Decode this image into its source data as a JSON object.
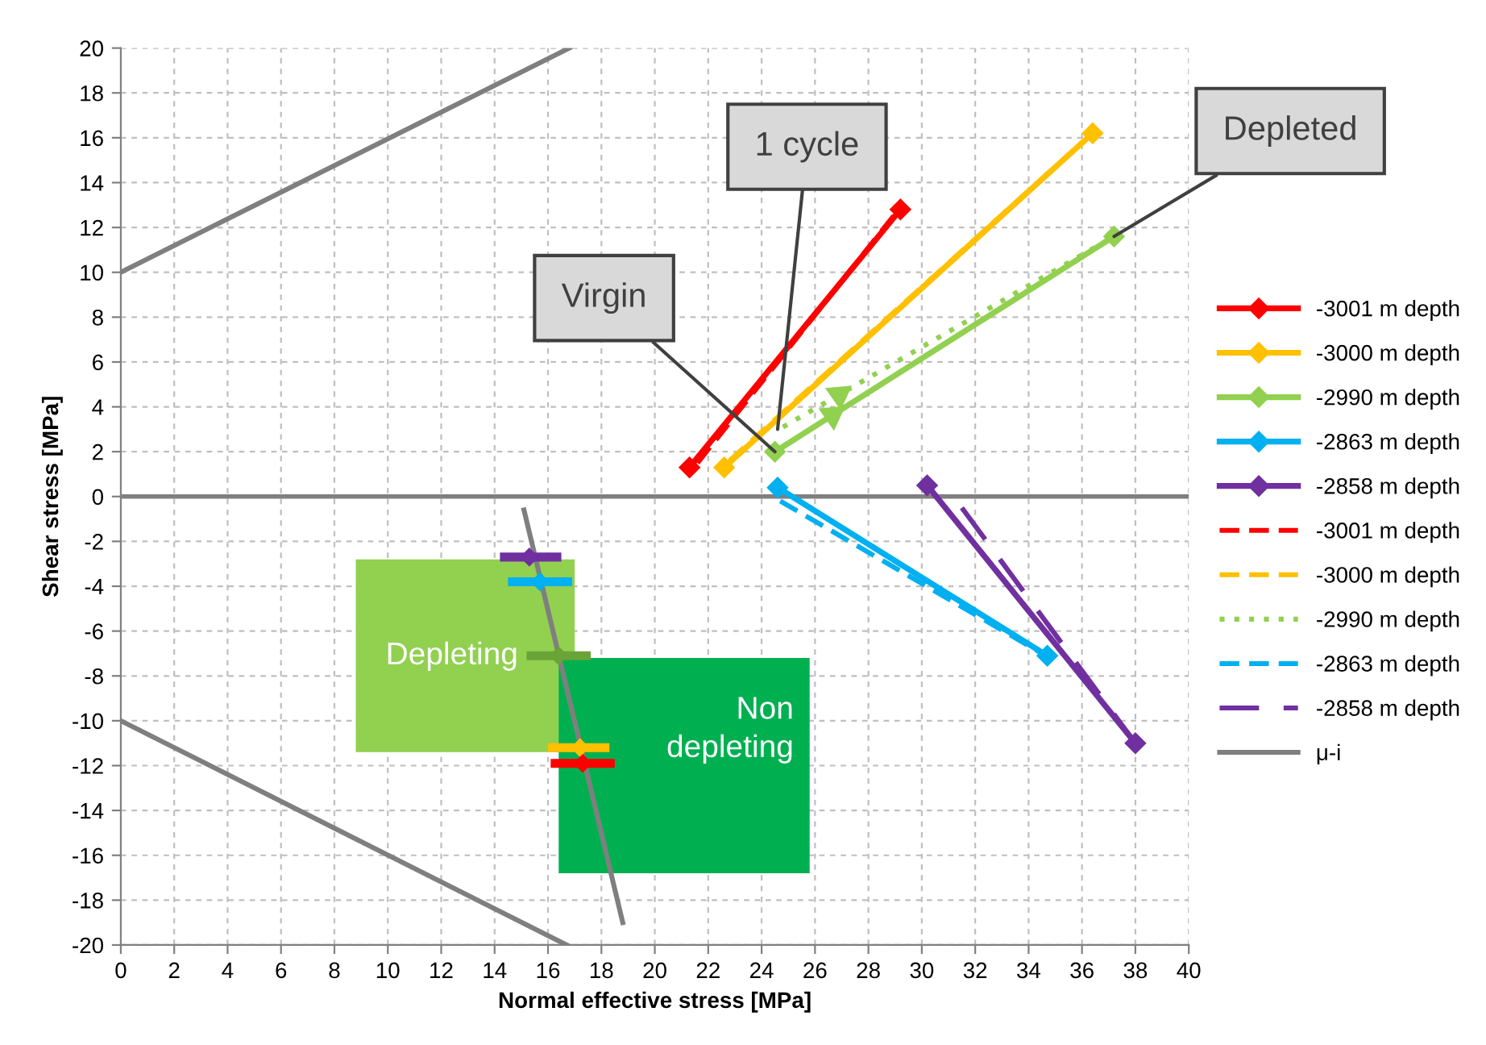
{
  "chart_data": {
    "type": "line",
    "xlabel": "Normal effective stress [MPa]",
    "ylabel": "Shear stress [MPa]",
    "xlim": [
      0,
      40
    ],
    "xticks": [
      0,
      2,
      4,
      6,
      8,
      10,
      12,
      14,
      16,
      18,
      20,
      22,
      24,
      26,
      28,
      30,
      32,
      34,
      36,
      38,
      40
    ],
    "ylim": [
      -20,
      20
    ],
    "yticks": [
      -20,
      -18,
      -16,
      -14,
      -12,
      -10,
      -8,
      -6,
      -4,
      -2,
      0,
      2,
      4,
      6,
      8,
      10,
      12,
      14,
      16,
      18,
      20
    ],
    "grid": true,
    "legend": "right",
    "marker": "diamond",
    "line_style": "solid",
    "ref_lines": [
      {
        "axis": "y",
        "value": 0,
        "color": "#808080"
      }
    ],
    "series": [
      {
        "name": "-3001 m depth",
        "color": "#ff0000",
        "x": [
          21.3,
          29.2
        ],
        "values": [
          1.3,
          12.8
        ]
      },
      {
        "name": "-3000 m depth",
        "color": "#ffc000",
        "x": [
          22.6,
          36.4
        ],
        "values": [
          1.3,
          16.2
        ]
      },
      {
        "name": "-2990 m depth",
        "color": "#92d050",
        "x": [
          24.5,
          37.2
        ],
        "values": [
          2.0,
          11.6
        ]
      },
      {
        "name": "-2863 m depth",
        "color": "#00b0f0",
        "x": [
          24.6,
          34.7
        ],
        "values": [
          0.4,
          -7.1
        ]
      },
      {
        "name": "-2858 m depth",
        "color": "#7030a0",
        "x": [
          30.2,
          38.0
        ],
        "values": [
          0.5,
          -11.0
        ]
      },
      {
        "name": "-3001 m depth",
        "color": "#ff0000",
        "x": [
          21.6,
          29.0
        ],
        "values": [
          1.5,
          12.6
        ],
        "marker": "none",
        "line_style": "dashed"
      },
      {
        "name": "-3000 m depth",
        "color": "#ffc000",
        "x": [
          22.8,
          36.2
        ],
        "values": [
          1.6,
          16.0
        ],
        "marker": "none",
        "line_style": "dashed"
      },
      {
        "name": "-2990 m depth",
        "color": "#92d050",
        "x": [
          24.8,
          37.2
        ],
        "values": [
          3.1,
          11.6
        ],
        "marker": "none",
        "line_style": "dotted"
      },
      {
        "name": "-2863 m depth",
        "color": "#00b0f0",
        "x": [
          24.7,
          34.5
        ],
        "values": [
          -0.2,
          -7.0
        ],
        "marker": "none",
        "line_style": "dashed"
      },
      {
        "name": "-2858 m depth",
        "color": "#7030a0",
        "x": [
          31.5,
          38.0
        ],
        "values": [
          -0.5,
          -11.0
        ],
        "marker": "none",
        "line_style": "longdash"
      },
      {
        "name": "μ-i",
        "color": "#7f7f7f",
        "x": [
          0,
          16.8,
          null,
          0,
          16.7,
          null,
          15.1,
          18.8
        ],
        "values": [
          10,
          20,
          null,
          -10,
          -20,
          null,
          -0.6,
          -19
        ],
        "marker": "none"
      },
      {
        "type": "scatter",
        "x": [
          15.3,
          15.7,
          16.4,
          17.2,
          17.3
        ],
        "values": [
          -2.7,
          -3.8,
          -7.1,
          -11.2,
          -11.9
        ],
        "colors": [
          "#7030a0",
          "#00b0f0",
          "#6aa337",
          "#ffc000",
          "#ff0000"
        ],
        "xerrors": [
          [
            14.2,
            16.5
          ],
          [
            14.5,
            16.9
          ],
          [
            15.2,
            17.6
          ],
          [
            16.0,
            18.3
          ],
          [
            16.1,
            18.5
          ]
        ]
      }
    ],
    "annotations": [
      {
        "text": "Virgin",
        "x": 24.5,
        "y": 2.0
      },
      {
        "text": "1 cycle",
        "x": 24.6,
        "y": 3.0
      },
      {
        "text": "Depleted",
        "x": 37.2,
        "y": 11.6
      },
      "Depleting",
      "Non\ndepleting"
    ]
  }
}
